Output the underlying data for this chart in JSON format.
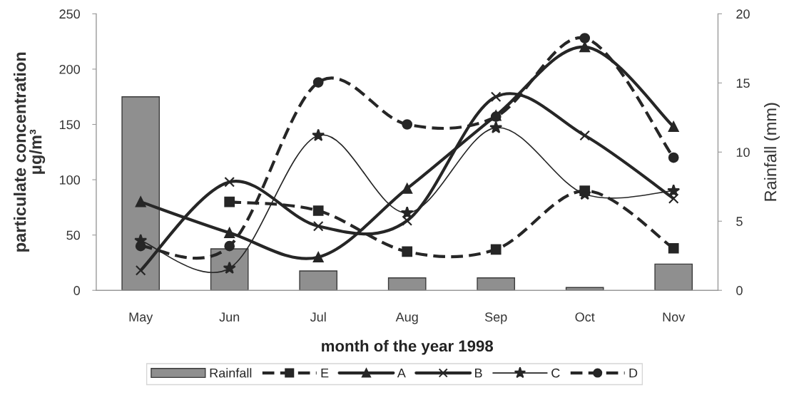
{
  "chart_data": {
    "type": "line",
    "xlabel": "month of the year 1998",
    "ylabel": "particulate concentration\nμg/m³",
    "y2label": "Rainfall (mm)",
    "categories": [
      "May",
      "Jun",
      "Jul",
      "Aug",
      "Sep",
      "Oct",
      "Nov"
    ],
    "series": [
      {
        "name": "Rainfall",
        "type": "bar",
        "axis": "y2",
        "color": "#8f8f8f",
        "values": [
          14,
          3,
          1.4,
          0.9,
          0.9,
          0.2,
          1.9
        ]
      },
      {
        "name": "E",
        "color": "#262626",
        "marker": "square",
        "line_style": "dashed",
        "values": [
          null,
          80,
          72,
          35,
          37,
          90,
          38
        ]
      },
      {
        "name": "A",
        "color": "#262626",
        "marker": "triangle",
        "line_style": "solid",
        "values": [
          80,
          52,
          30,
          92,
          158,
          220,
          148
        ]
      },
      {
        "name": "B",
        "color": "#262626",
        "marker": "cross",
        "line_style": "solid",
        "values": [
          18,
          98,
          58,
          63,
          175,
          140,
          83
        ]
      },
      {
        "name": "C",
        "color": "#262626",
        "marker": "star",
        "line_style": "solid",
        "values": [
          45,
          20,
          140,
          70,
          147,
          87,
          90
        ]
      },
      {
        "name": "D",
        "color": "#262626",
        "marker": "circle",
        "line_style": "dashed",
        "values": [
          40,
          40,
          188,
          150,
          157,
          228,
          120
        ]
      }
    ],
    "ylim": [
      0,
      250
    ],
    "yticks": [
      0,
      50,
      100,
      150,
      200,
      250
    ],
    "y2lim": [
      0,
      20
    ],
    "y2ticks": [
      0,
      5,
      10,
      15,
      20
    ],
    "grid": false,
    "legend": "bottom"
  }
}
